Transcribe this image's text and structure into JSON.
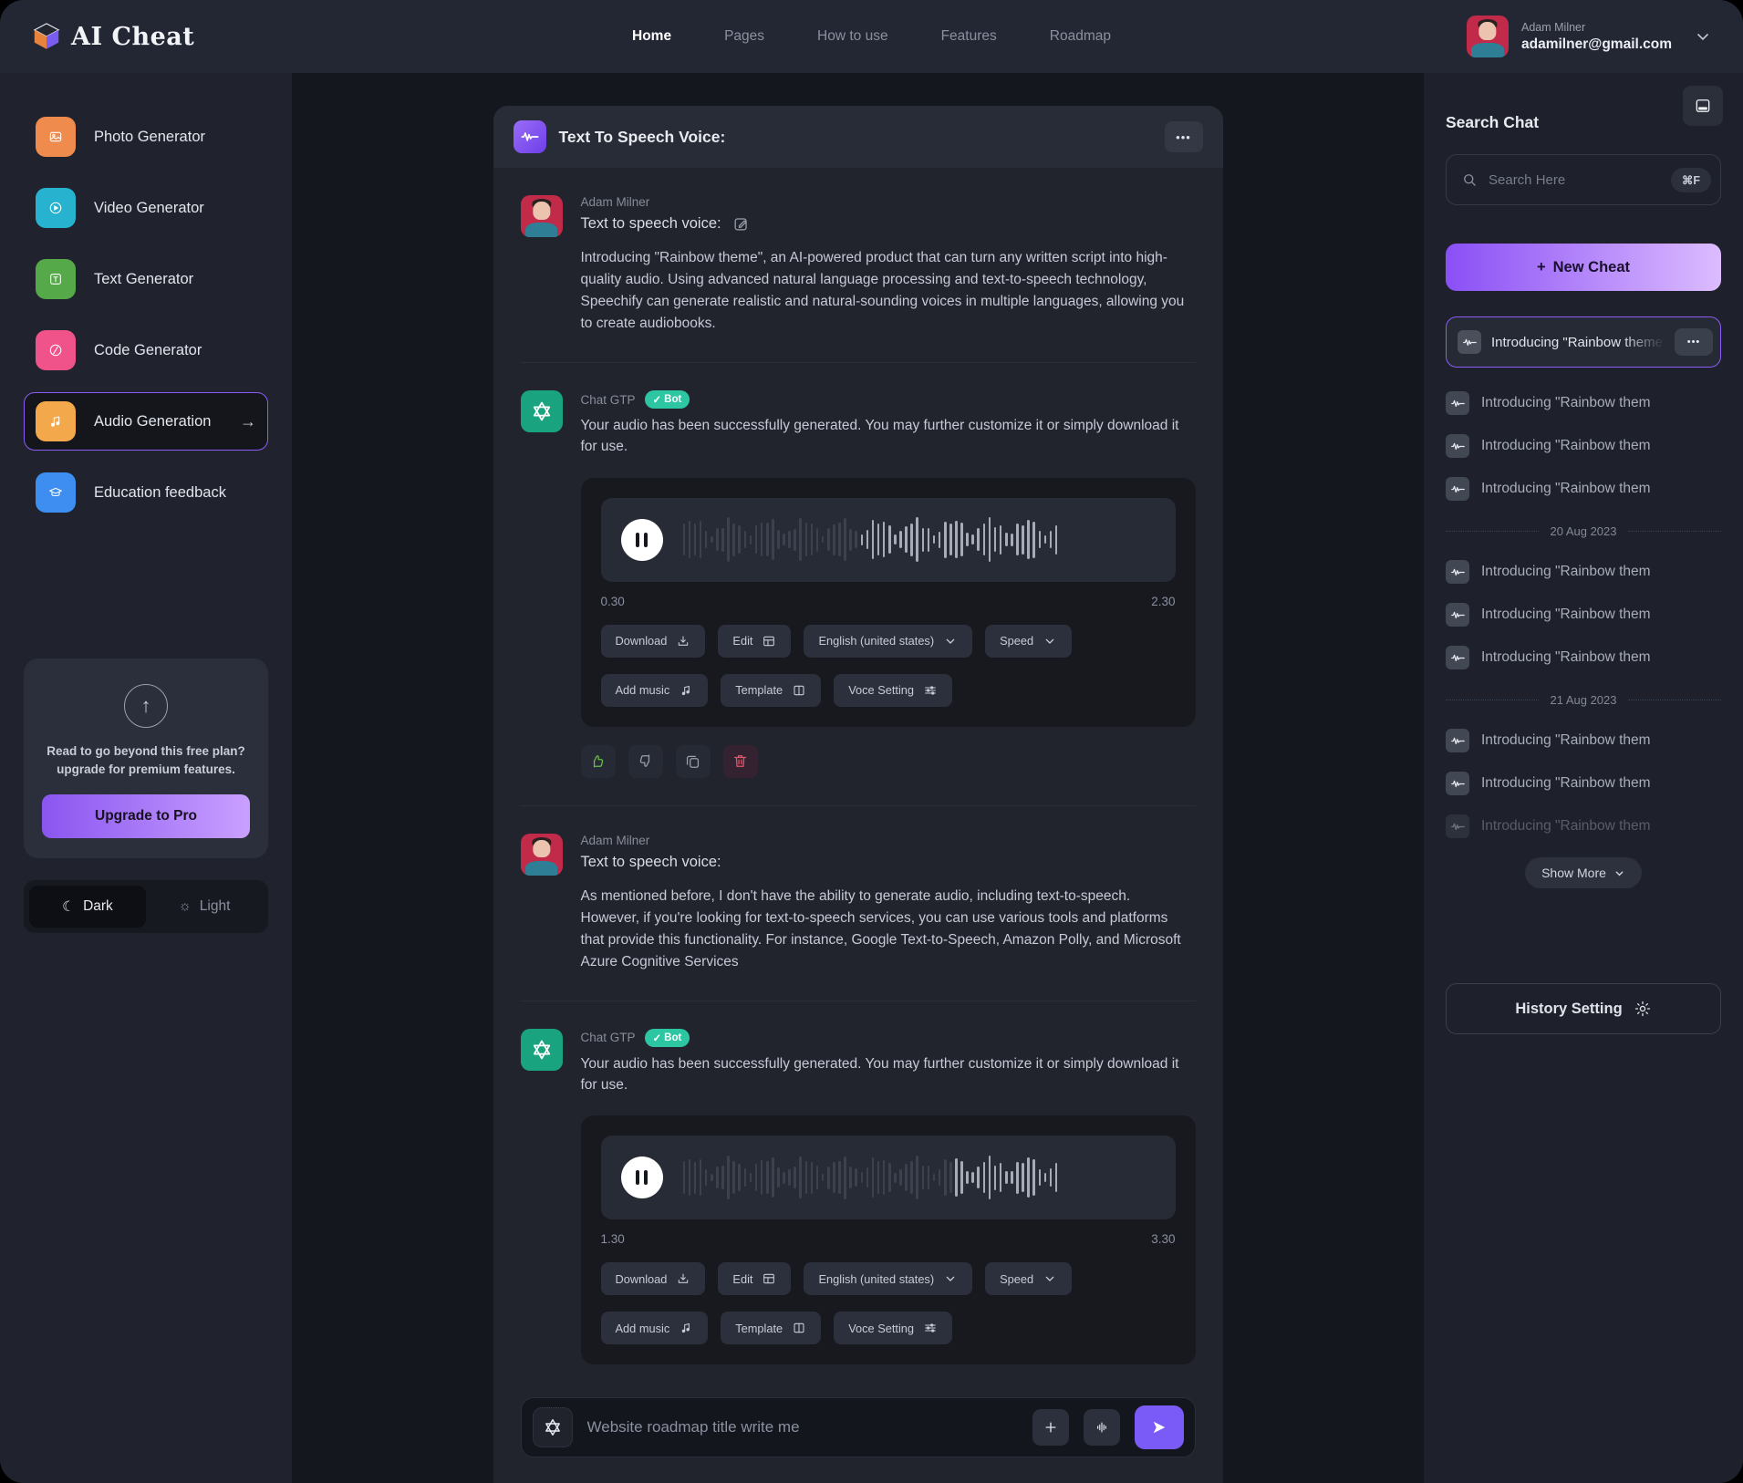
{
  "app": {
    "brand": "AI Cheat"
  },
  "topnav": {
    "items": [
      {
        "label": "Home",
        "active": true
      },
      {
        "label": "Pages",
        "active": false
      },
      {
        "label": "How to use",
        "active": false
      },
      {
        "label": "Features",
        "active": false
      },
      {
        "label": "Roadmap",
        "active": false
      }
    ],
    "user": {
      "name": "Adam Milner",
      "email": "adamilner@gmail.com"
    }
  },
  "sidebar": {
    "items": [
      {
        "label": "Photo Generator",
        "icon": "photo-icon",
        "color": "#ee8b4d",
        "active": false
      },
      {
        "label": "Video Generator",
        "icon": "video-icon",
        "color": "#27b2cf",
        "active": false
      },
      {
        "label": "Text Generator",
        "icon": "text-icon",
        "color": "#55a949",
        "active": false
      },
      {
        "label": "Code Generator",
        "icon": "code-icon",
        "color": "#ef5389",
        "active": false
      },
      {
        "label": "Audio Generation",
        "icon": "audio-icon",
        "color": "#f3a84c",
        "active": true
      },
      {
        "label": "Education feedback",
        "icon": "education-icon",
        "color": "#3d8ef0",
        "active": false
      }
    ],
    "upgrade": {
      "text": "Read to go beyond this free plan? upgrade for premium features.",
      "button": "Upgrade to Pro"
    },
    "theme": {
      "dark": "Dark",
      "light": "Light"
    }
  },
  "chat": {
    "title": "Text To Speech Voice:",
    "messages": [
      {
        "author": "Adam Milner",
        "title": "Text to speech voice:",
        "body": "Introducing \"Rainbow theme\", an AI-powered product that can turn any written script into high-quality audio. Using advanced natural language processing and text-to-speech technology, Speechify can generate realistic and natural-sounding voices in multiple languages, allowing you to create audiobooks."
      },
      {
        "author": "Chat GTP",
        "badge": "Bot",
        "body": "Your audio has been successfully generated. You may further customize it or simply download it for use.",
        "player": {
          "start": "0.30",
          "end": "2.30"
        }
      },
      {
        "author": "Adam Milner",
        "title": "Text to speech voice:",
        "body": "As mentioned before, I don't have the ability to generate audio, including text-to-speech. However, if you're looking for text-to-speech services, you can use various tools and platforms that provide this functionality. For instance, Google Text-to-Speech, Amazon Polly, and Microsoft Azure Cognitive Services"
      },
      {
        "author": "Chat GTP",
        "badge": "Bot",
        "body": "Your audio has been successfully generated. You may further customize it or simply download it for use.",
        "player": {
          "start": "1.30",
          "end": "3.30"
        }
      }
    ],
    "player_buttons": {
      "row1": [
        {
          "label": "Download",
          "icon": "download-icon"
        },
        {
          "label": "Edit",
          "icon": "grid-icon"
        },
        {
          "label": "English (united states)",
          "icon": "chevron-down-icon"
        },
        {
          "label": "Speed",
          "icon": "chevron-down-icon"
        }
      ],
      "row2": [
        {
          "label": "Add music",
          "icon": "music-icon"
        },
        {
          "label": "Template",
          "icon": "template-icon"
        },
        {
          "label": "Voce Setting",
          "icon": "sliders-icon"
        }
      ]
    },
    "input": {
      "placeholder": "Website roadmap title write me"
    }
  },
  "rightbar": {
    "heading": "Search Chat",
    "search": {
      "placeholder": "Search Here",
      "shortcut": "⌘F"
    },
    "new_cheat": "New Cheat",
    "selected_item": "Introducing \"Rainbow theme\", a",
    "history_sections": [
      {
        "date": "",
        "items": [
          {
            "label": "Introducing \"Rainbow them",
            "faded": false
          },
          {
            "label": "Introducing \"Rainbow them",
            "faded": false
          },
          {
            "label": "Introducing \"Rainbow them",
            "faded": false
          }
        ]
      },
      {
        "date": "20 Aug 2023",
        "items": [
          {
            "label": "Introducing \"Rainbow them",
            "faded": false
          },
          {
            "label": "Introducing \"Rainbow them",
            "faded": false
          },
          {
            "label": "Introducing \"Rainbow them",
            "faded": false
          }
        ]
      },
      {
        "date": "21 Aug 2023",
        "items": [
          {
            "label": "Introducing \"Rainbow them",
            "faded": false
          },
          {
            "label": "Introducing \"Rainbow them",
            "faded": false
          },
          {
            "label": "Introducing \"Rainbow them",
            "faded": true
          }
        ]
      }
    ],
    "show_more": "Show More",
    "history_setting": "History Setting"
  },
  "colors": {
    "accent": "#8b5cf6",
    "gradient_start": "#8a4ff5",
    "gradient_end": "#dcbcff",
    "gpt_green": "#19a37f",
    "badge_green": "#2cc7a2",
    "like_green": "#6abf4b",
    "danger_red": "#e4556a"
  }
}
